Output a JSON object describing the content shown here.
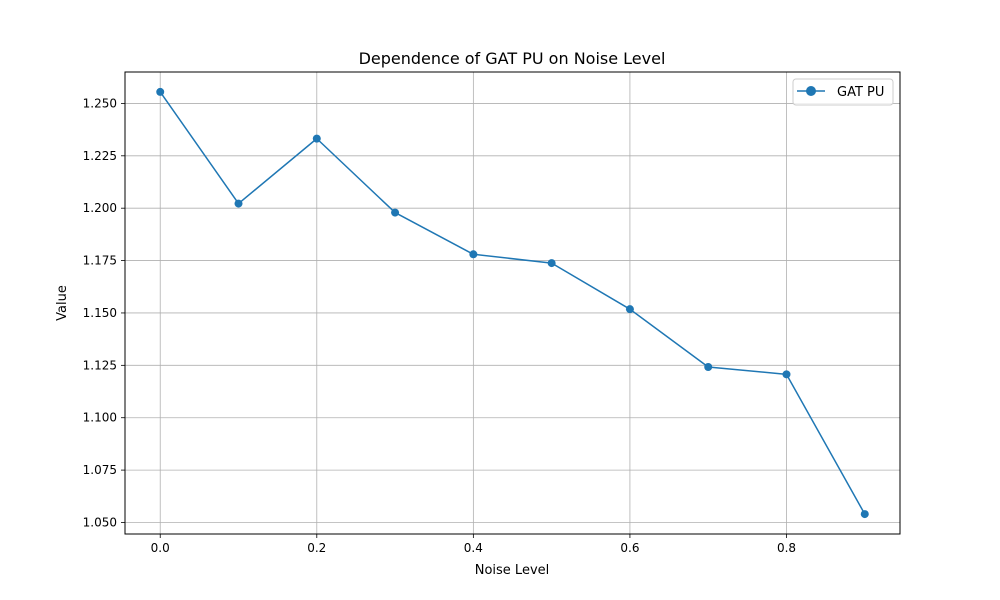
{
  "chart_data": {
    "type": "line",
    "title": "Dependence of GAT PU on Noise Level",
    "xlabel": "Noise Level",
    "ylabel": "Value",
    "x": [
      0.0,
      0.1,
      0.2,
      0.3,
      0.4,
      0.5,
      0.6,
      0.7,
      0.8,
      0.9
    ],
    "series": [
      {
        "name": "GAT PU",
        "color": "#1f77b4",
        "marker": "circle",
        "values": [
          1.2555,
          1.2022,
          1.2332,
          1.1979,
          1.178,
          1.1738,
          1.1518,
          1.1242,
          1.1207,
          1.054
        ]
      }
    ],
    "xlim": [
      -0.045,
      0.945
    ],
    "ylim": [
      1.0445,
      1.265
    ],
    "xticks": [
      0.0,
      0.2,
      0.4,
      0.6,
      0.8
    ],
    "xtick_labels": [
      "0.0",
      "0.2",
      "0.4",
      "0.6",
      "0.8"
    ],
    "yticks": [
      1.05,
      1.075,
      1.1,
      1.125,
      1.15,
      1.175,
      1.2,
      1.225,
      1.25
    ],
    "ytick_labels": [
      "1.050",
      "1.075",
      "1.100",
      "1.125",
      "1.150",
      "1.175",
      "1.200",
      "1.225",
      "1.250"
    ],
    "grid": true,
    "legend_position": "top-right"
  }
}
